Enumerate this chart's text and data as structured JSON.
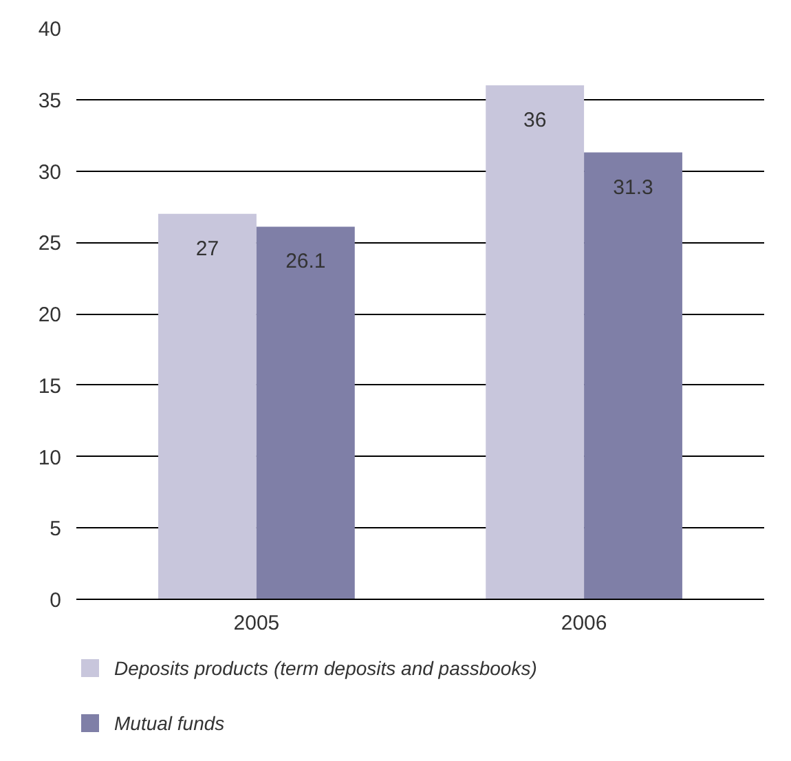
{
  "chart_data": {
    "type": "bar",
    "categories": [
      "2005",
      "2006"
    ],
    "series": [
      {
        "name": "Deposits products (term deposits and passbooks)",
        "color": "#c8c6dc",
        "values": [
          27,
          36
        ]
      },
      {
        "name": "Mutual funds",
        "color": "#7f7fa7",
        "values": [
          26.1,
          31.3
        ]
      }
    ],
    "ylim": [
      0,
      40
    ],
    "yticks": [
      0,
      5,
      10,
      15,
      20,
      25,
      30,
      35,
      40
    ],
    "grid": "y",
    "legend": "bottom",
    "data_labels": true
  }
}
